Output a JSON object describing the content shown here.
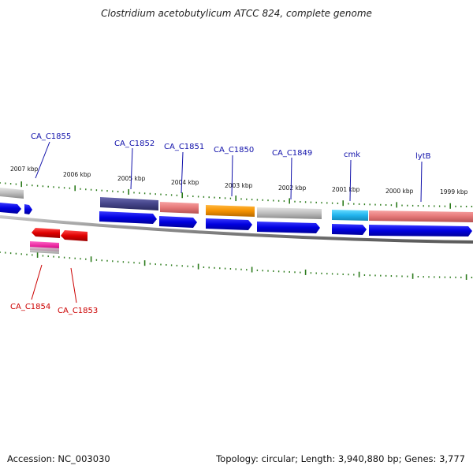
{
  "title": "Clostridium acetobutylicum ATCC 824, complete genome",
  "footer": {
    "accession": "Accession: NC_003030",
    "topology": "Topology: circular; Length: 3,940,880 bp; Genes: 3,777"
  },
  "colors": {
    "backbone": "#8a8a8a",
    "tick": "#2a7a1a",
    "cds": "#0a0adc",
    "label_top": "#1010aa",
    "label_bottom": "#cc0000"
  },
  "ticks": [
    "2007 kbp",
    "2006 kbp",
    "2005 kbp",
    "2004 kbp",
    "2003 kbp",
    "2002 kbp",
    "2001 kbp",
    "2000 kbp",
    "1999 kbp"
  ],
  "top_labels": [
    "CA_C1855",
    "CA_C1852",
    "CA_C1851",
    "CA_C1850",
    "CA_C1849",
    "cmk",
    "lytB"
  ],
  "bottom_labels": [
    "CA_C1854",
    "CA_C1853"
  ]
}
